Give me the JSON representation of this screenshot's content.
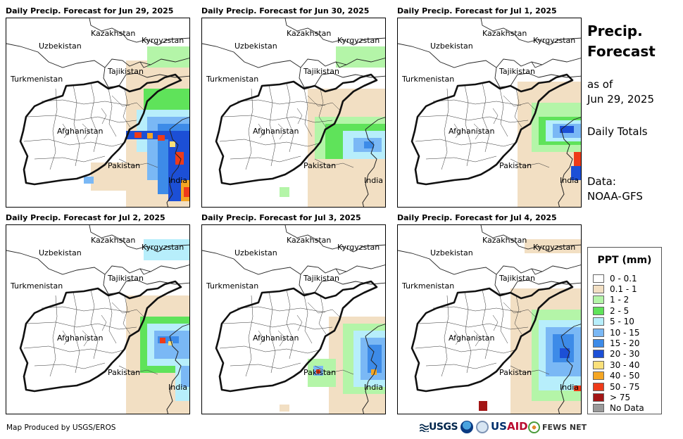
{
  "panels": [
    {
      "title": "Daily Precip. Forecast for Jun 29, 2025"
    },
    {
      "title": "Daily Precip. Forecast for Jun 30, 2025"
    },
    {
      "title": "Daily Precip. Forecast for Jul 1, 2025"
    },
    {
      "title": "Daily Precip. Forecast for Jul 2, 2025"
    },
    {
      "title": "Daily Precip. Forecast for Jul 3, 2025"
    },
    {
      "title": "Daily Precip. Forecast for Jul 4, 2025"
    }
  ],
  "map_labels": {
    "kazakhstan": "Kazakhstan",
    "kyrgyzstan": "Kyrgyzstan",
    "uzbekistan": "Uzbekistan",
    "tajikistan": "Tajikistan",
    "turkmenistan": "Turkmenistan",
    "afghanistan": "Afghanistan",
    "pakistan": "Pakistan",
    "india": "India"
  },
  "side": {
    "title": "Precip. Forecast",
    "as_of_label": "as of",
    "as_of_date": "Jun 29, 2025",
    "period": "Daily Totals",
    "data_label": "Data:",
    "data_source": "NOAA-GFS"
  },
  "legend": {
    "title": "PPT (mm)",
    "items": [
      {
        "label": "0 - 0.1",
        "color": "#ffffff"
      },
      {
        "label": "0.1 - 1",
        "color": "#f2dfc3"
      },
      {
        "label": "1 - 2",
        "color": "#b4f5a8"
      },
      {
        "label": "2 - 5",
        "color": "#5fe35a"
      },
      {
        "label": "5 - 10",
        "color": "#b7eefb"
      },
      {
        "label": "10 - 15",
        "color": "#7ab8f5"
      },
      {
        "label": "15 - 20",
        "color": "#3d8be8"
      },
      {
        "label": "20 - 30",
        "color": "#1c4fd6"
      },
      {
        "label": "30 - 40",
        "color": "#fae07a"
      },
      {
        "label": "40 - 50",
        "color": "#f5a623"
      },
      {
        "label": "50 - 75",
        "color": "#ee3b1a"
      },
      {
        "label": "> 75",
        "color": "#a31515"
      },
      {
        "label": "No Data",
        "color": "#999999"
      }
    ]
  },
  "footer": {
    "credit": "Map Produced by USGS/EROS",
    "logos": {
      "usgs": "USGS",
      "usaid_a": "US",
      "usaid_b": "AID",
      "fews": "FEWS NET"
    }
  }
}
